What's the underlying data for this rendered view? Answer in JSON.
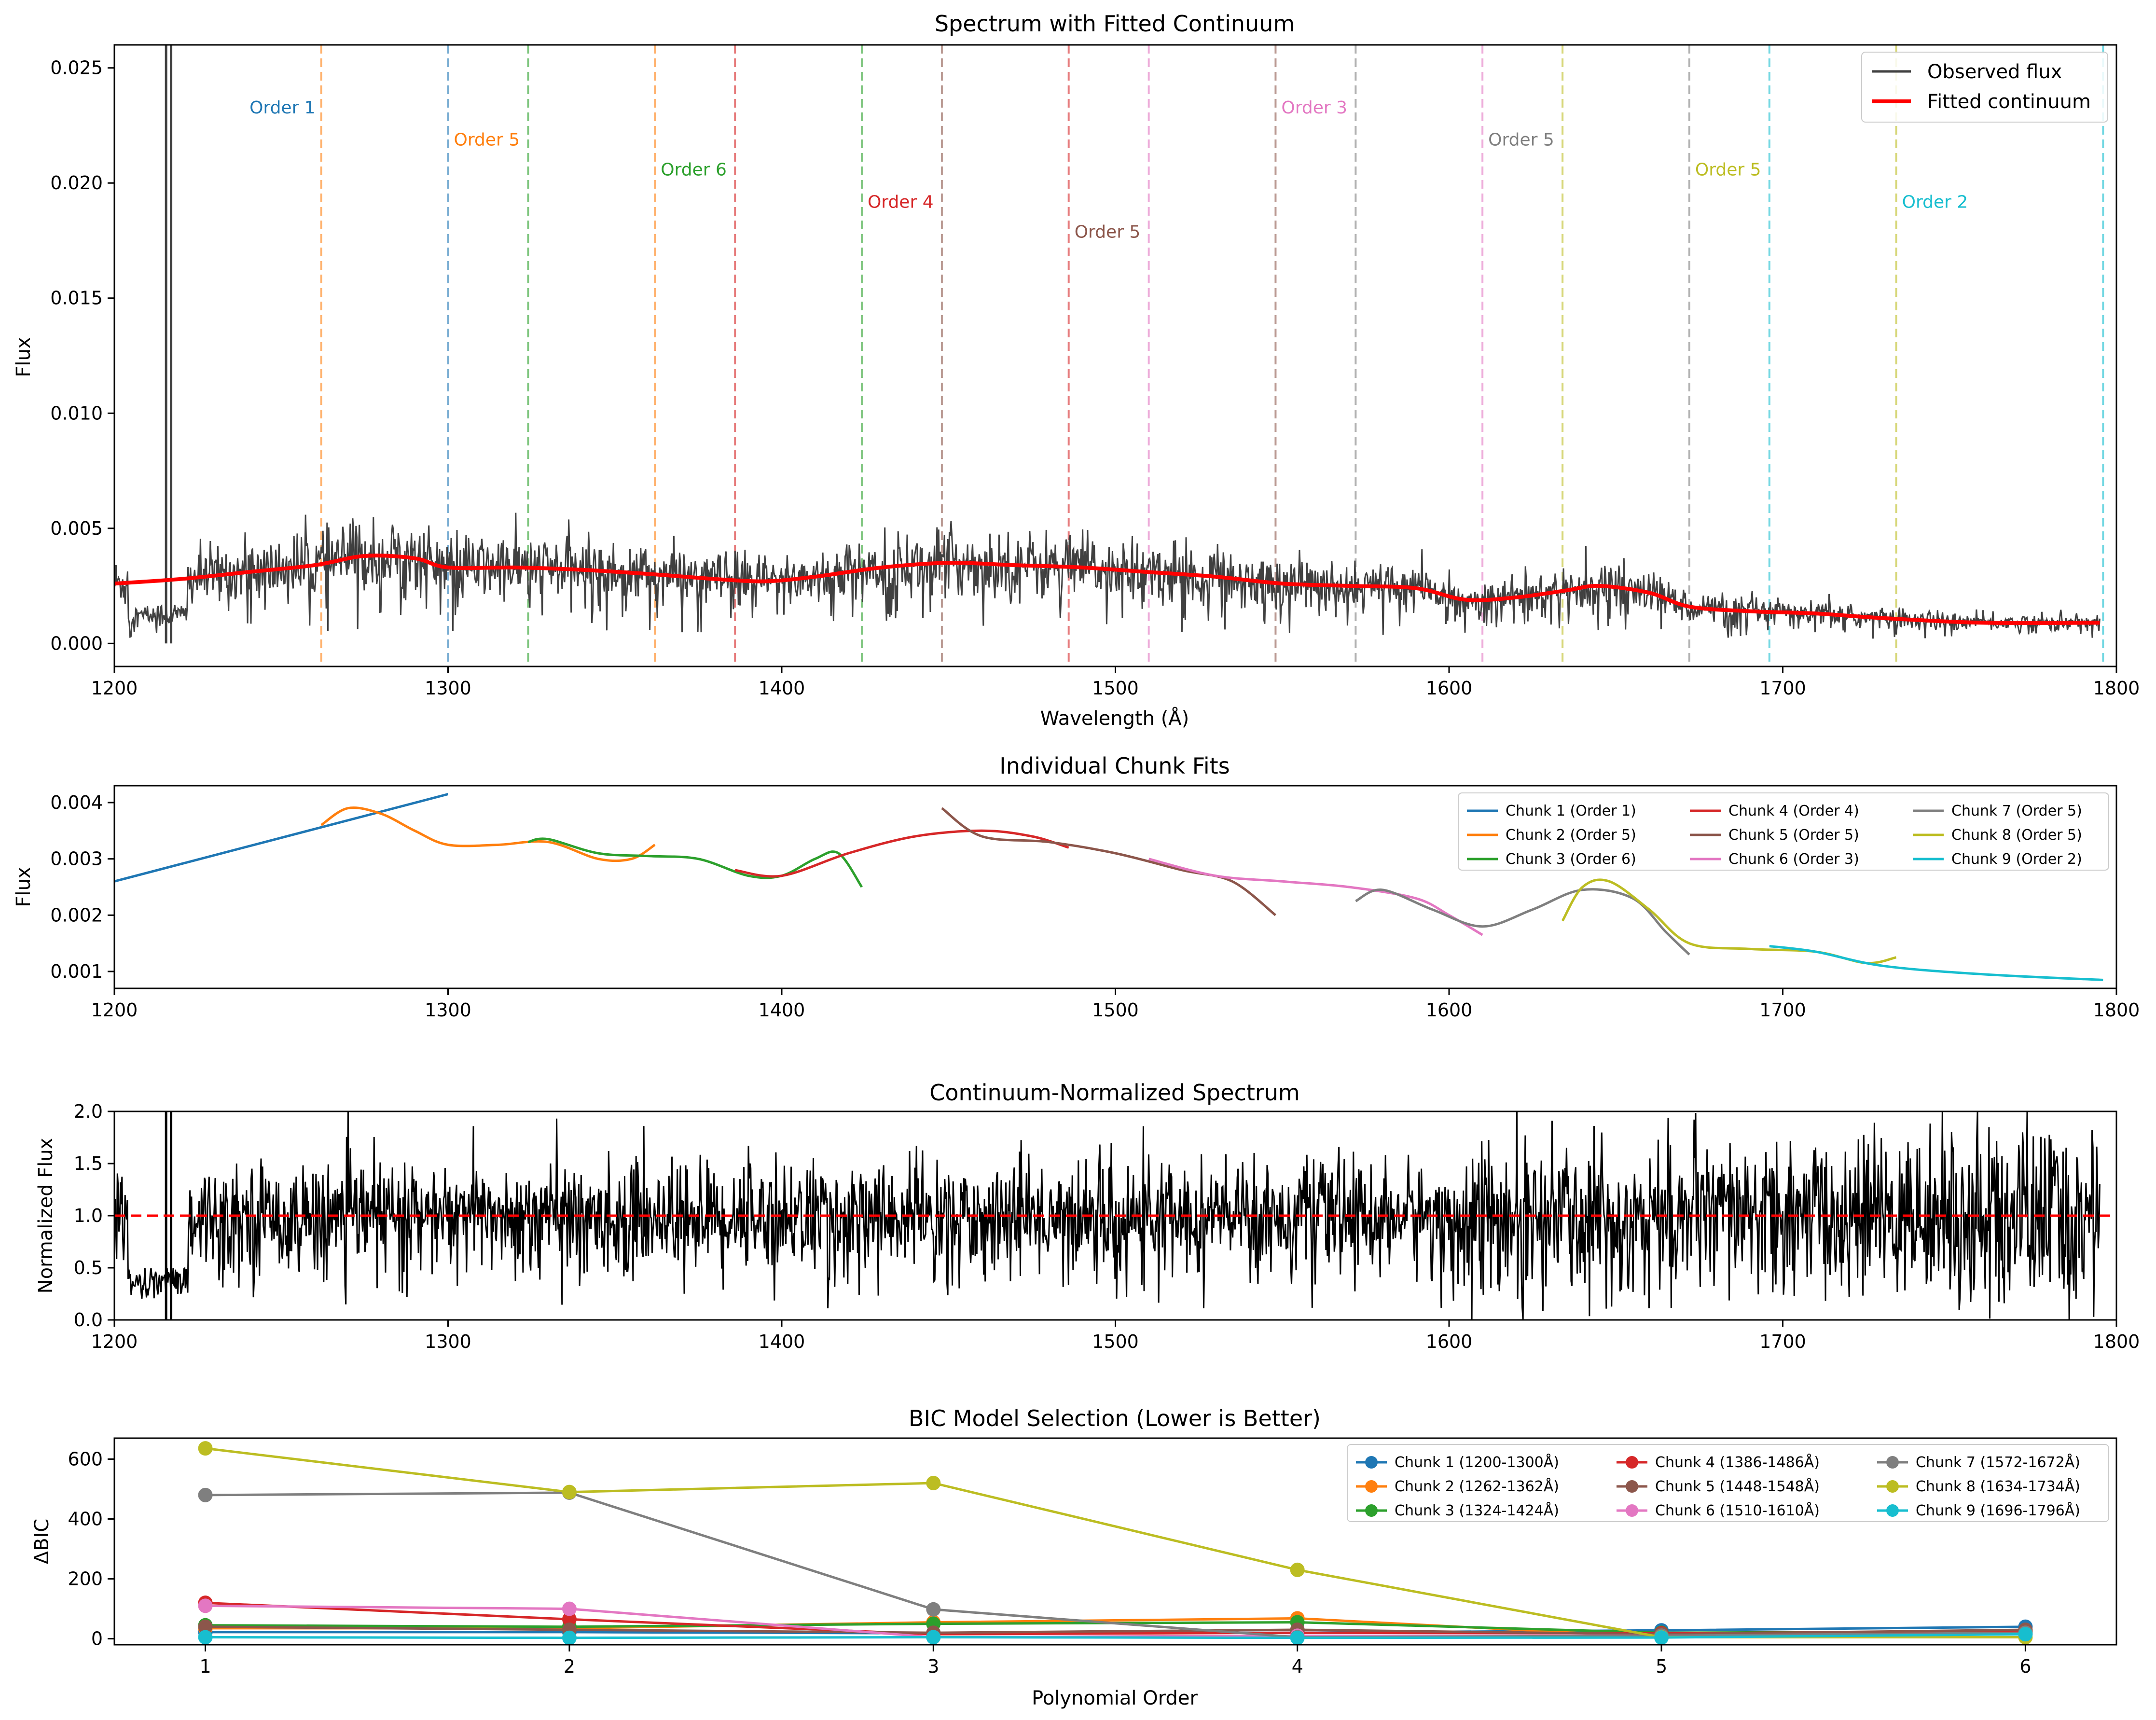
{
  "chart_data": [
    {
      "type": "line",
      "title": "Spectrum with Fitted Continuum",
      "xlabel": "Wavelength (Å)",
      "ylabel": "Flux",
      "xlim": [
        1200,
        1800
      ],
      "ylim": [
        -0.001,
        0.026
      ],
      "xticks": [
        "1200",
        "1300",
        "1400",
        "1500",
        "1600",
        "1700",
        "1800"
      ],
      "yticks": [
        "0.000",
        "0.005",
        "0.010",
        "0.015",
        "0.020",
        "0.025"
      ],
      "legend": {
        "placement": "upper-right",
        "entries": [
          "Observed flux",
          "Fitted continuum"
        ]
      },
      "series": [
        {
          "name": "Fitted continuum",
          "color": "#ff0000",
          "x": [
            1200,
            1220,
            1240,
            1260,
            1275,
            1290,
            1300,
            1320,
            1340,
            1362,
            1380,
            1395,
            1410,
            1430,
            1450,
            1470,
            1490,
            1510,
            1530,
            1550,
            1570,
            1590,
            1605,
            1620,
            1635,
            1645,
            1660,
            1672,
            1690,
            1710,
            1730,
            1760,
            1795
          ],
          "values": [
            0.0026,
            0.0028,
            0.0031,
            0.0034,
            0.0038,
            0.0037,
            0.0033,
            0.0033,
            0.0032,
            0.003,
            0.0028,
            0.0027,
            0.0029,
            0.0033,
            0.0035,
            0.0034,
            0.0033,
            0.0031,
            0.0029,
            0.0026,
            0.0025,
            0.0024,
            0.0019,
            0.002,
            0.0023,
            0.0025,
            0.0022,
            0.0016,
            0.0014,
            0.0013,
            0.0011,
            0.0009,
            0.0009
          ]
        },
        {
          "name": "Observed flux",
          "color": "#404040",
          "note": "dense noisy spectrum (~0.6x–1.4x of continuum) with spike near 1216 Å reaching above 0.026",
          "spike_x": [
            1215.5,
            1217.0
          ]
        }
      ],
      "annotations": [
        {
          "x": 1262,
          "label": "Order 1",
          "color": "#1f77b4",
          "line_color": "#ff7f0e",
          "y": 0.0233
        },
        {
          "x": 1300,
          "label": "Order 5",
          "color": "#ff7f0e",
          "line_color": "#1f77b4",
          "y": 0.0219
        },
        {
          "x": 1324,
          "label": "",
          "line_color": "#2ca02c"
        },
        {
          "x": 1362,
          "label": "Order 6",
          "color": "#2ca02c",
          "line_color": "#ff7f0e",
          "y": 0.0206
        },
        {
          "x": 1386,
          "label": "",
          "line_color": "#d62728"
        },
        {
          "x": 1424,
          "label": "Order 4",
          "color": "#d62728",
          "line_color": "#2ca02c",
          "y": 0.0192
        },
        {
          "x": 1448,
          "label": "",
          "line_color": "#8c564b"
        },
        {
          "x": 1486,
          "label": "Order 5",
          "color": "#8c564b",
          "line_color": "#d62728",
          "y": 0.0179
        },
        {
          "x": 1510,
          "label": "",
          "line_color": "#e377c2"
        },
        {
          "x": 1548,
          "label": "Order 3",
          "color": "#e377c2",
          "line_color": "#8c564b",
          "y": 0.0233
        },
        {
          "x": 1572,
          "label": "",
          "line_color": "#7f7f7f"
        },
        {
          "x": 1610,
          "label": "Order 5",
          "color": "#7f7f7f",
          "line_color": "#e377c2",
          "y": 0.0219
        },
        {
          "x": 1634,
          "label": "",
          "line_color": "#bcbd22"
        },
        {
          "x": 1672,
          "label": "Order 5",
          "color": "#bcbd22",
          "line_color": "#7f7f7f",
          "y": 0.0206
        },
        {
          "x": 1696,
          "label": "",
          "line_color": "#17becf"
        },
        {
          "x": 1734,
          "label": "Order 2",
          "color": "#17becf",
          "line_color": "#bcbd22",
          "y": 0.0192
        },
        {
          "x": 1796,
          "label": "",
          "line_color": "#17becf"
        }
      ]
    },
    {
      "type": "line",
      "title": "Individual Chunk Fits",
      "xlabel": "",
      "ylabel": "Flux",
      "xlim": [
        1200,
        1800
      ],
      "ylim": [
        0.0007,
        0.0043
      ],
      "xticks": [
        "1200",
        "1300",
        "1400",
        "1500",
        "1600",
        "1700",
        "1800"
      ],
      "yticks": [
        "0.001",
        "0.002",
        "0.003",
        "0.004"
      ],
      "legend": {
        "placement": "upper-right",
        "columns": 3
      },
      "series": [
        {
          "name": "Chunk 1 (Order 1)",
          "color": "#1f77b4",
          "x": [
            1200,
            1300
          ],
          "values": [
            0.0026,
            0.00415
          ]
        },
        {
          "name": "Chunk 2 (Order 5)",
          "color": "#ff7f0e",
          "x": [
            1262,
            1270,
            1280,
            1290,
            1300,
            1315,
            1330,
            1345,
            1355,
            1362
          ],
          "values": [
            0.0036,
            0.0039,
            0.0038,
            0.0035,
            0.00325,
            0.00325,
            0.0033,
            0.003,
            0.003,
            0.00325
          ]
        },
        {
          "name": "Chunk 3 (Order 6)",
          "color": "#2ca02c",
          "x": [
            1324,
            1330,
            1345,
            1360,
            1375,
            1390,
            1400,
            1410,
            1417,
            1424
          ],
          "values": [
            0.0033,
            0.00335,
            0.0031,
            0.00305,
            0.003,
            0.0027,
            0.0027,
            0.003,
            0.0031,
            0.0025
          ]
        },
        {
          "name": "Chunk 4 (Order 4)",
          "color": "#d62728",
          "x": [
            1386,
            1400,
            1420,
            1440,
            1460,
            1475,
            1486
          ],
          "values": [
            0.0028,
            0.0027,
            0.0031,
            0.0034,
            0.0035,
            0.0034,
            0.0032
          ]
        },
        {
          "name": "Chunk 5 (Order 5)",
          "color": "#8c564b",
          "x": [
            1448,
            1460,
            1480,
            1500,
            1520,
            1535,
            1548
          ],
          "values": [
            0.0039,
            0.0034,
            0.0033,
            0.0031,
            0.0028,
            0.0026,
            0.002
          ]
        },
        {
          "name": "Chunk 6 (Order 3)",
          "color": "#e377c2",
          "x": [
            1510,
            1530,
            1550,
            1570,
            1590,
            1600,
            1610
          ],
          "values": [
            0.003,
            0.0027,
            0.0026,
            0.0025,
            0.0023,
            0.002,
            0.00165
          ]
        },
        {
          "name": "Chunk 7 (Order 5)",
          "color": "#7f7f7f",
          "x": [
            1572,
            1580,
            1595,
            1610,
            1625,
            1640,
            1655,
            1665,
            1672
          ],
          "values": [
            0.00225,
            0.00245,
            0.0021,
            0.0018,
            0.0021,
            0.00245,
            0.0023,
            0.0017,
            0.0013
          ]
        },
        {
          "name": "Chunk 8 (Order 5)",
          "color": "#bcbd22",
          "x": [
            1634,
            1640,
            1648,
            1660,
            1672,
            1690,
            1710,
            1725,
            1734
          ],
          "values": [
            0.0019,
            0.0025,
            0.0026,
            0.0021,
            0.0015,
            0.0014,
            0.00135,
            0.00115,
            0.00125
          ]
        },
        {
          "name": "Chunk 9 (Order 2)",
          "color": "#17becf",
          "x": [
            1696,
            1710,
            1730,
            1760,
            1796
          ],
          "values": [
            0.00145,
            0.00135,
            0.0011,
            0.00095,
            0.00085
          ]
        }
      ]
    },
    {
      "type": "line",
      "title": "Continuum-Normalized Spectrum",
      "xlabel": "",
      "ylabel": "Normalized Flux",
      "xlim": [
        1200,
        1800
      ],
      "ylim": [
        0.0,
        2.0
      ],
      "xticks": [
        "1200",
        "1300",
        "1400",
        "1500",
        "1600",
        "1700",
        "1800"
      ],
      "yticks": [
        "0.0",
        "0.5",
        "1.0",
        "1.5",
        "2.0"
      ],
      "reference_line": {
        "y": 1.0,
        "color": "#ff0000",
        "style": "dashed"
      },
      "series": [
        {
          "name": "",
          "color": "#000000",
          "note": "dense noisy normalized spectrum centered on 1.0, spike near 1216 Å, noisier beyond 1600 Å"
        }
      ]
    },
    {
      "type": "line",
      "title": "BIC Model Selection (Lower is Better)",
      "xlabel": "Polynomial Order",
      "ylabel": "ΔBIC",
      "xlim": [
        0.75,
        6.25
      ],
      "ylim": [
        -20,
        670
      ],
      "x": [
        1,
        2,
        3,
        4,
        5,
        6
      ],
      "xticks": [
        "1",
        "2",
        "3",
        "4",
        "5",
        "6"
      ],
      "yticks": [
        "0",
        "200",
        "400",
        "600"
      ],
      "legend": {
        "placement": "upper-right",
        "columns": 3
      },
      "series": [
        {
          "name": "Chunk 1 (1200-1300Å)",
          "color": "#1f77b4",
          "values": [
            22,
            22,
            18,
            20,
            28,
            40
          ]
        },
        {
          "name": "Chunk 2 (1262-1362Å)",
          "color": "#ff7f0e",
          "values": [
            35,
            35,
            55,
            68,
            5,
            15
          ]
        },
        {
          "name": "Chunk 3 (1324-1424Å)",
          "color": "#2ca02c",
          "values": [
            45,
            40,
            50,
            55,
            20,
            25
          ]
        },
        {
          "name": "Chunk 4 (1386-1486Å)",
          "color": "#d62728",
          "values": [
            120,
            65,
            15,
            20,
            18,
            25
          ]
        },
        {
          "name": "Chunk 5 (1448-1548Å)",
          "color": "#8c564b",
          "values": [
            40,
            30,
            20,
            30,
            15,
            30
          ]
        },
        {
          "name": "Chunk 6 (1510-1610Å)",
          "color": "#e377c2",
          "values": [
            110,
            100,
            5,
            10,
            10,
            15
          ]
        },
        {
          "name": "Chunk 7 (1572-1672Å)",
          "color": "#7f7f7f",
          "values": [
            480,
            488,
            98,
            5,
            10,
            20
          ]
        },
        {
          "name": "Chunk 8 (1634-1734Å)",
          "color": "#bcbd22",
          "values": [
            636,
            490,
            520,
            230,
            5,
            5
          ]
        },
        {
          "name": "Chunk 9 (1696-1796Å)",
          "color": "#17becf",
          "values": [
            5,
            3,
            5,
            3,
            4,
            15
          ]
        }
      ]
    }
  ]
}
